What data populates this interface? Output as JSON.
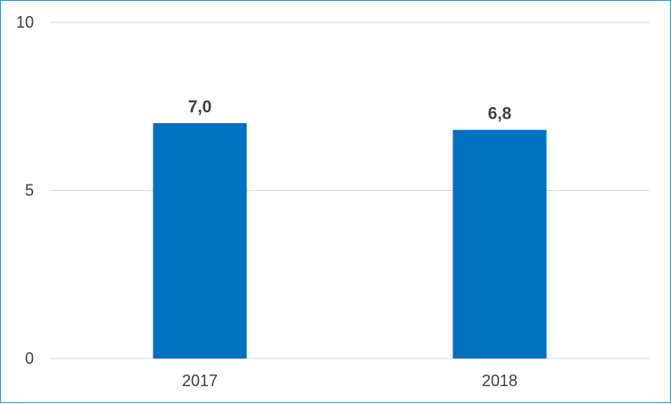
{
  "chart_data": {
    "type": "bar",
    "categories": [
      "2017",
      "2018"
    ],
    "values": [
      7.0,
      6.8
    ],
    "data_labels": [
      "7,0",
      "6,8"
    ],
    "title": "",
    "xlabel": "",
    "ylabel": "",
    "ylim": [
      0,
      10
    ],
    "y_ticks": [
      {
        "value": 0,
        "label": "0"
      },
      {
        "value": 5,
        "label": "5"
      },
      {
        "value": 10,
        "label": "10"
      }
    ],
    "grid": true,
    "legend": "none",
    "bar_color": "#0070c0",
    "border_color": "#1ba1e2"
  }
}
